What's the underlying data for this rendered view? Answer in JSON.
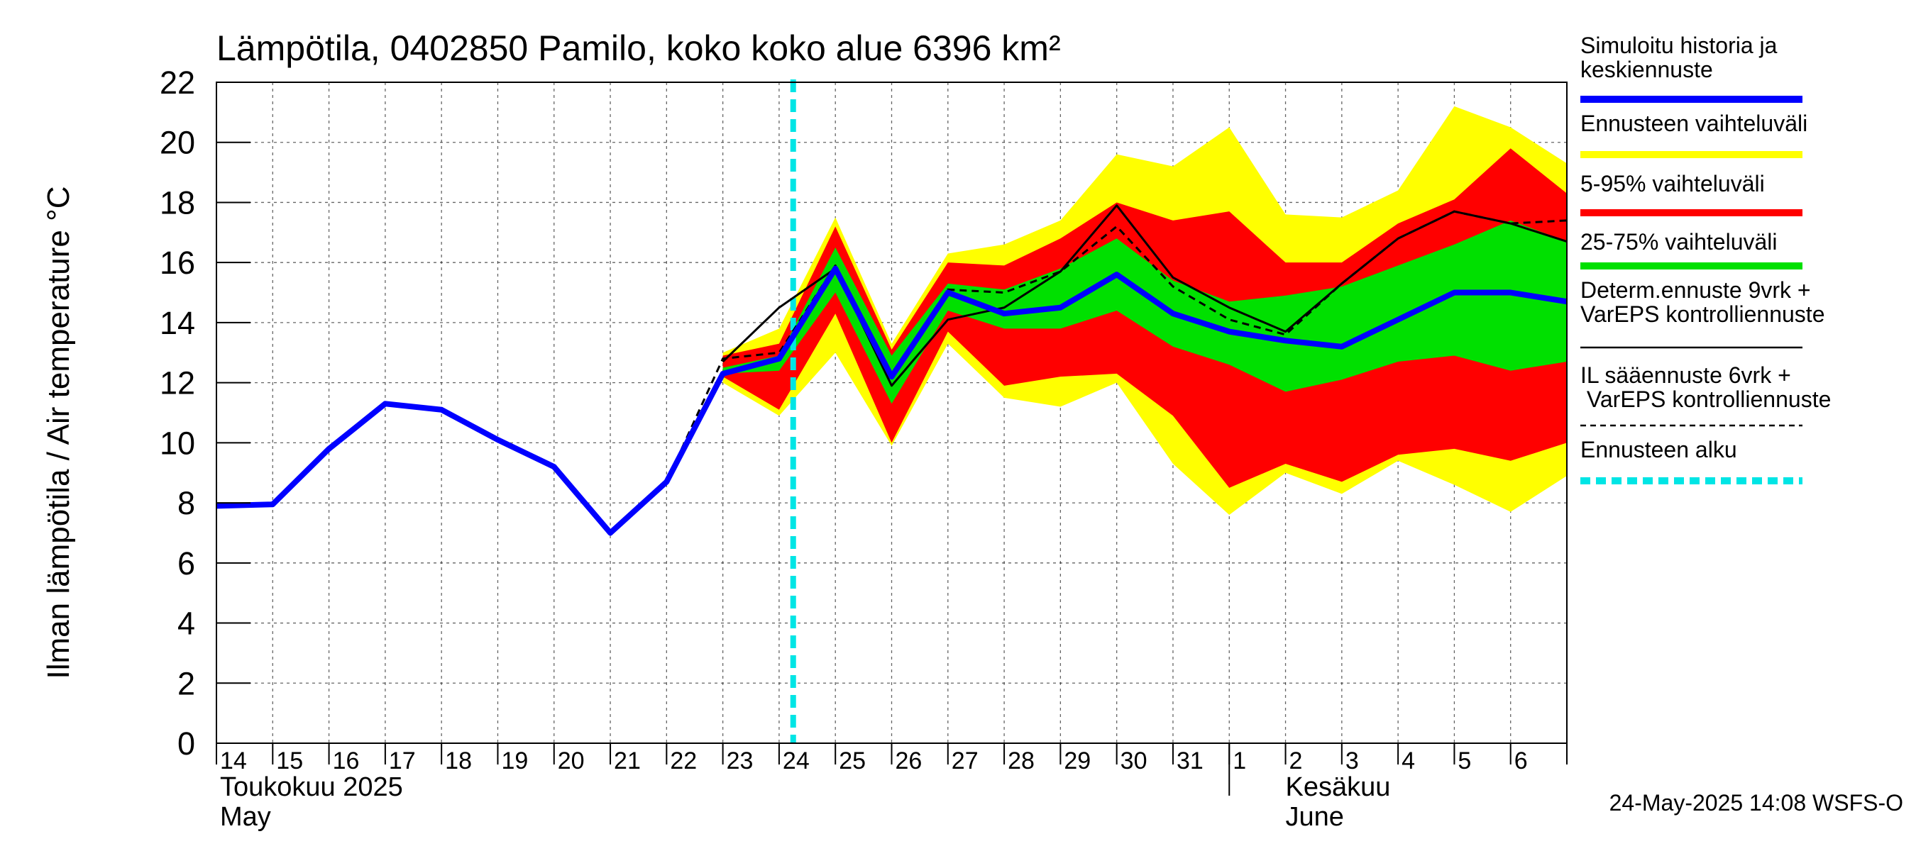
{
  "chart_data": {
    "type": "area",
    "title": "Lämpötila, 0402850 Pamilo, koko koko alue 6396 km²",
    "ylabel": "Ilman lämpötila / Air temperature   °C",
    "ylim": [
      0,
      22
    ],
    "yticks": [
      0,
      2,
      4,
      6,
      8,
      10,
      12,
      14,
      16,
      18,
      20,
      22
    ],
    "x_day_labels": [
      "14",
      "15",
      "16",
      "17",
      "18",
      "19",
      "20",
      "21",
      "22",
      "23",
      "24",
      "25",
      "26",
      "27",
      "28",
      "29",
      "30",
      "31",
      "1",
      "2",
      "3",
      "4",
      "5",
      "6"
    ],
    "month_labels": [
      {
        "fi": "Toukokuu  2025",
        "en": "May"
      },
      {
        "fi": "Kesäkuu",
        "en": "June"
      }
    ],
    "forecast_start": "24",
    "grid": true,
    "legend_position": "right",
    "series": [
      {
        "name": "Simuloitu historia ja keskiennuste",
        "style": "line",
        "color": "#0000ff",
        "x": [
          0,
          1,
          2,
          3,
          4,
          5,
          6,
          7,
          8,
          9,
          10,
          11,
          12,
          13,
          14,
          15,
          16,
          17,
          18,
          19,
          20,
          21,
          22,
          23,
          24
        ],
        "values": [
          7.9,
          7.95,
          9.8,
          11.3,
          11.1,
          10.1,
          9.2,
          7.0,
          8.7,
          12.3,
          12.8,
          15.8,
          12.2,
          15.0,
          14.3,
          14.5,
          15.6,
          14.3,
          13.7,
          13.4,
          13.2,
          14.1,
          15.0,
          15.0,
          14.7
        ]
      },
      {
        "name": "Ennusteen vaihteluväli",
        "style": "band",
        "color": "#ffff00",
        "x": [
          9,
          10,
          11,
          12,
          13,
          14,
          15,
          16,
          17,
          18,
          19,
          20,
          21,
          22,
          23,
          24
        ],
        "upper": [
          13.0,
          13.8,
          17.5,
          13.3,
          16.3,
          16.6,
          17.4,
          19.6,
          19.2,
          20.5,
          17.6,
          17.5,
          18.4,
          21.2,
          20.5,
          19.3
        ],
        "lower": [
          12.0,
          10.9,
          13.0,
          9.9,
          13.3,
          11.5,
          11.2,
          12.0,
          9.3,
          7.6,
          9.0,
          8.3,
          9.4,
          8.6,
          7.7,
          8.9
        ]
      },
      {
        "name": "5-95% vaihteluväli",
        "style": "band",
        "color": "#ff0000",
        "x": [
          9,
          10,
          11,
          12,
          13,
          14,
          15,
          16,
          17,
          18,
          19,
          20,
          21,
          22,
          23,
          24
        ],
        "upper": [
          12.9,
          13.3,
          17.2,
          13.1,
          16.0,
          15.9,
          16.8,
          18.0,
          17.4,
          17.7,
          16.0,
          16.0,
          17.3,
          18.1,
          19.8,
          18.3
        ],
        "lower": [
          12.2,
          11.1,
          14.3,
          10.0,
          13.7,
          11.9,
          12.2,
          12.3,
          10.9,
          8.5,
          9.3,
          8.7,
          9.6,
          9.8,
          9.4,
          10.0
        ]
      },
      {
        "name": "25-75% vaihteluväli",
        "style": "band",
        "color": "#00e000",
        "x": [
          9,
          10,
          11,
          12,
          13,
          14,
          15,
          16,
          17,
          18,
          19,
          20,
          21,
          22,
          23,
          24
        ],
        "upper": [
          12.5,
          12.9,
          16.5,
          12.9,
          15.3,
          15.1,
          15.8,
          16.8,
          15.4,
          14.7,
          14.9,
          15.2,
          15.9,
          16.6,
          17.4,
          16.7
        ],
        "lower": [
          12.3,
          12.4,
          15.0,
          11.3,
          14.4,
          13.8,
          13.8,
          14.4,
          13.2,
          12.6,
          11.7,
          12.1,
          12.7,
          12.9,
          12.4,
          12.7
        ]
      },
      {
        "name": "Determ.ennuste 9vrk + VarEPS kontrolliennuste",
        "style": "line",
        "color": "#000000",
        "x": [
          9,
          10,
          11,
          12,
          13,
          14,
          15,
          16,
          17,
          18,
          19,
          20,
          21,
          22,
          23,
          24
        ],
        "values": [
          12.7,
          14.5,
          15.8,
          11.9,
          14.1,
          14.5,
          15.7,
          17.9,
          15.5,
          14.5,
          13.7,
          15.3,
          16.8,
          17.7,
          17.3,
          16.7
        ]
      },
      {
        "name": "IL sääennuste 6vrk  + VarEPS kontrolliennuste",
        "style": "dashed",
        "color": "#000000",
        "x": [
          8,
          9,
          10,
          11,
          12,
          13,
          14,
          15,
          16,
          17,
          18,
          19,
          20,
          21,
          22,
          23,
          24
        ],
        "values": [
          8.7,
          12.8,
          13.0,
          15.9,
          12.3,
          15.1,
          15.0,
          15.7,
          17.2,
          15.2,
          14.1,
          13.6,
          15.3,
          16.8,
          17.7,
          17.3,
          17.4
        ]
      }
    ],
    "legend": [
      {
        "label": "Simuloitu historia ja keskiennuste",
        "color": "#0000ff",
        "style": "thick"
      },
      {
        "label": "Ennusteen vaihteluväli",
        "color": "#ffff00",
        "style": "thick"
      },
      {
        "label": "5-95% vaihteluväli",
        "color": "#ff0000",
        "style": "thick"
      },
      {
        "label": "25-75% vaihteluväli",
        "color": "#00e000",
        "style": "thick"
      },
      {
        "label": "Determ.ennuste 9vrk + VarEPS kontrolliennuste",
        "color": "#000000",
        "style": "thin"
      },
      {
        "label": "IL sääennuste 6vrk  + VarEPS kontrolliennuste",
        "color": "#000000",
        "style": "dashed"
      },
      {
        "label": "Ennusteen alku",
        "color": "#00e5e5",
        "style": "thick-dashed"
      }
    ],
    "footer": "24-May-2025 14:08 WSFS-O"
  }
}
